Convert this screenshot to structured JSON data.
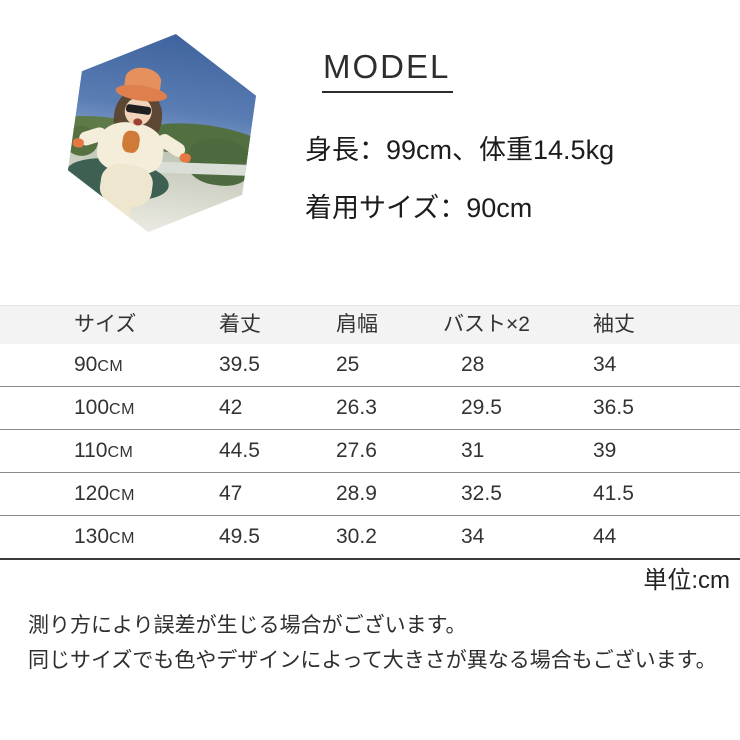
{
  "model_section": {
    "title": "MODEL",
    "info_line1": "身長：99cm、体重14.5kg",
    "info_line2": "着用サイズ：90cm"
  },
  "photo": {
    "colors": {
      "sky": "#3f639e",
      "hills": "#5d7a48",
      "ground": "#c9cec1",
      "bench": "#3e6053",
      "hat": "#e6905e",
      "outfit": "#f4edda",
      "cuffs": "#e87843",
      "hair": "#5c4735",
      "skin": "#f1d4b9"
    }
  },
  "size_table": {
    "headers": [
      "サイズ",
      "着丈",
      "肩幅",
      "バスト×2",
      "袖丈"
    ],
    "rows": [
      {
        "num": "90",
        "unit": "CM",
        "cells": [
          "39.5",
          "25",
          "28",
          "34"
        ]
      },
      {
        "num": "100",
        "unit": "CM",
        "cells": [
          "42",
          "26.3",
          "29.5",
          "36.5"
        ]
      },
      {
        "num": "110",
        "unit": "CM",
        "cells": [
          "44.5",
          "27.6",
          "31",
          "39"
        ]
      },
      {
        "num": "120",
        "unit": "CM",
        "cells": [
          "47",
          "28.9",
          "32.5",
          "41.5"
        ]
      },
      {
        "num": "130",
        "unit": "CM",
        "cells": [
          "49.5",
          "30.2",
          "34",
          "44"
        ]
      }
    ],
    "unit_note": "単位:cm",
    "colors": {
      "header_bg": "#f3f3f3",
      "row_line": "#8a8a8a",
      "bottom_line": "#3a3a3a"
    }
  },
  "notes": {
    "line1": "測り方により誤差が生じる場合がございます。",
    "line2": "同じサイズでも色やデザインによって大きさが異なる場合もございます。"
  }
}
